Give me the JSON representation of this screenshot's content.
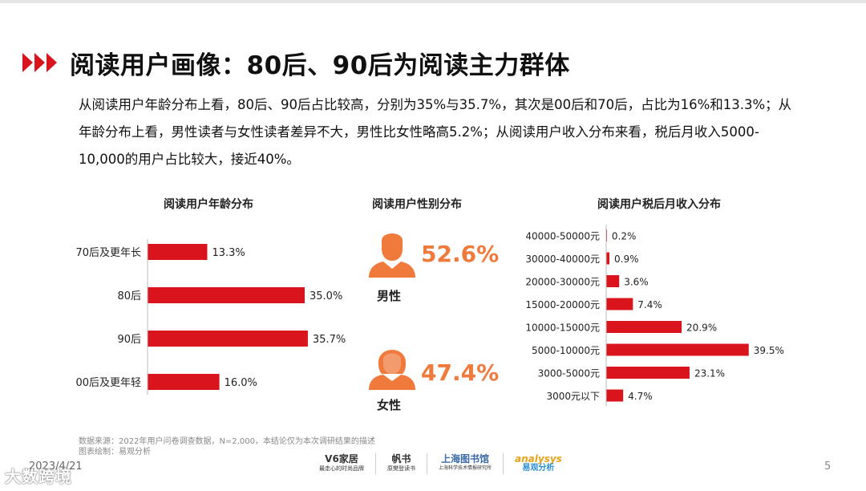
{
  "title": "阅读用户画像：80后、90后为阅读主力群体",
  "summary": "从阅读用户年龄分布上看，80后、90后占比较高，分别为35%与35.7%，其次是00后和70后，占比为16%和13.3%；从年龄分布上看，男性读者与女性读者差异不大，男性比女性略高5.2%；从阅读用户收入分布来看，税后月收入5000-10,000的用户占比较大，接近40%。",
  "colors": {
    "accent": "#d9141c",
    "bar": "#d9141c",
    "gender": "#ef7a3c"
  },
  "chart_data": [
    {
      "type": "bar",
      "orientation": "horizontal",
      "title": "阅读用户年龄分布",
      "categories": [
        "70后及更年长",
        "80后",
        "90后",
        "00后及更年轻"
      ],
      "values": [
        13.3,
        35.0,
        35.7,
        16.0
      ],
      "value_labels": [
        "13.3%",
        "35.0%",
        "35.7%",
        "16.0%"
      ],
      "unit": "%"
    },
    {
      "type": "pictograph",
      "title": "阅读用户性别分布",
      "categories": [
        "男性",
        "女性"
      ],
      "values": [
        52.6,
        47.4
      ],
      "value_labels": [
        "52.6%",
        "47.4%"
      ],
      "icons": [
        "male-person-icon",
        "female-person-icon"
      ]
    },
    {
      "type": "bar",
      "orientation": "horizontal",
      "title": "阅读用户税后月收入分布",
      "categories": [
        "40000-50000元",
        "30000-40000元",
        "20000-30000元",
        "15000-20000元",
        "10000-15000元",
        "5000-10000元",
        "3000-5000元",
        "3000元以下"
      ],
      "values": [
        0.2,
        0.9,
        3.6,
        7.4,
        20.9,
        39.5,
        23.1,
        4.7
      ],
      "value_labels": [
        "0.2%",
        "0.9%",
        "3.6%",
        "7.4%",
        "20.9%",
        "39.5%",
        "23.1%",
        "4.7%"
      ],
      "unit": "%"
    }
  ],
  "footer": {
    "source": "数据来源：2022年用户问卷调查数据，N=2,000，本结论仅为本次调研结果的描述",
    "drawn_by": "图表绘制：易观分析",
    "date": "2023/4/21",
    "page": "5",
    "logos": [
      {
        "name": "V6家居",
        "sub": "最走心的时尚品牌"
      },
      {
        "name": "帆书",
        "sub": "原樊登读书"
      },
      {
        "name": "上海图书馆",
        "sub": "上海科学技术情报研究所"
      },
      {
        "name": "analysys",
        "sub": "易观分析"
      }
    ]
  },
  "watermark": "大数跨境"
}
